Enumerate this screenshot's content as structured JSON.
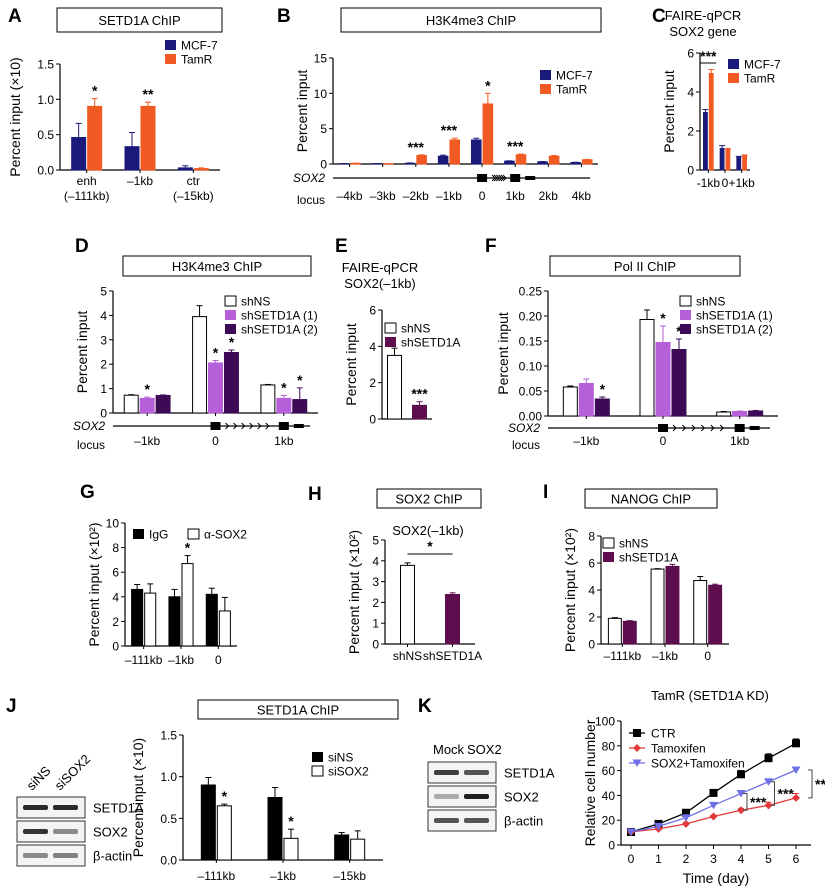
{
  "colors": {
    "mcf7": "#1a1a7a",
    "tamr": "#f25a23",
    "shns": "#ffffff",
    "sh1": "#b560d8",
    "sh2": "#3d0a55",
    "shsetd1a": "#5e0d4e",
    "black": "#000000",
    "ctr": "#000000",
    "tamoxifen": "#e23a3a",
    "sox2tam": "#6f6fe8"
  },
  "chart_data": [
    {
      "id": "A",
      "type": "bar",
      "panel_label": "A",
      "boxed_title": "SETD1A ChIP",
      "ylabel": "Percent input (×10)",
      "ylim": [
        0,
        1.5
      ],
      "yticks": [
        "0.0",
        "0.5",
        "1.0",
        "1.5"
      ],
      "categories": [
        "enh\n(–111kb)",
        "–1kb",
        "ctr\n(–15kb)"
      ],
      "series": [
        {
          "name": "MCF-7",
          "color_key": "mcf7",
          "values": [
            0.46,
            0.33,
            0.03
          ],
          "errors": [
            0.2,
            0.2,
            0.03
          ]
        },
        {
          "name": "TamR",
          "color_key": "tamr",
          "values": [
            0.9,
            0.9,
            0.02
          ],
          "errors": [
            0.11,
            0.06,
            0.01
          ]
        }
      ],
      "annotations": [
        {
          "category": 0,
          "series": 1,
          "text": "*"
        },
        {
          "category": 1,
          "series": 1,
          "text": "**"
        }
      ],
      "legend": "top-right"
    },
    {
      "id": "B",
      "type": "bar",
      "panel_label": "B",
      "boxed_title": "H3K4me3 ChIP",
      "ylabel": "Percent input",
      "ylim": [
        0,
        15
      ],
      "yticks": [
        "0",
        "5",
        "10",
        "15"
      ],
      "categories": [
        "–4kb",
        "–3kb",
        "–2kb",
        "–1kb",
        "0",
        "1kb",
        "2kb",
        "4kb"
      ],
      "series": [
        {
          "name": "MCF-7",
          "color_key": "mcf7",
          "values": [
            0.05,
            0.05,
            0.1,
            1.1,
            3.4,
            0.4,
            0.3,
            0.2
          ],
          "errors": [
            0.02,
            0.02,
            0.05,
            0.15,
            0.25,
            0.05,
            0.05,
            0.05
          ]
        },
        {
          "name": "TamR",
          "color_key": "tamr",
          "values": [
            0.1,
            0.05,
            1.2,
            3.4,
            8.5,
            1.3,
            1.1,
            0.6
          ],
          "errors": [
            0.02,
            0.02,
            0.1,
            0.25,
            1.5,
            0.1,
            0.1,
            0.05
          ]
        }
      ],
      "annotations": [
        {
          "category": 2,
          "text": "***"
        },
        {
          "category": 3,
          "text": "***"
        },
        {
          "category": 4,
          "series": 1,
          "text": "*"
        },
        {
          "category": 5,
          "text": "***"
        }
      ],
      "locus_label": [
        "SOX2",
        "locus"
      ],
      "legend": "top-right"
    },
    {
      "id": "C",
      "type": "bar",
      "panel_label": "C",
      "title_lines": [
        "FAIRE-qPCR",
        "SOX2 gene"
      ],
      "ylabel": "Percent input",
      "ylim": [
        0,
        6
      ],
      "yticks": [
        "0",
        "2",
        "4",
        "6"
      ],
      "categories": [
        "-1kb",
        "0",
        "+1kb"
      ],
      "series": [
        {
          "name": "MCF-7",
          "color_key": "mcf7",
          "values": [
            2.95,
            1.1,
            0.65
          ],
          "errors": [
            0.15,
            0.15,
            0.05
          ]
        },
        {
          "name": "TamR",
          "color_key": "tamr",
          "values": [
            4.95,
            1.05,
            0.72
          ],
          "errors": [
            0.2,
            0.05,
            0.05
          ]
        }
      ],
      "annotations": [
        {
          "category": 0,
          "text": "***",
          "bracket": true
        }
      ],
      "legend": "top-right"
    },
    {
      "id": "D",
      "type": "bar",
      "panel_label": "D",
      "boxed_title": "H3K4me3 ChIP",
      "ylabel": "Percent input",
      "ylim": [
        0,
        5
      ],
      "yticks": [
        "0",
        "1",
        "2",
        "3",
        "4",
        "5"
      ],
      "categories": [
        "–1kb",
        "0",
        "1kb"
      ],
      "series": [
        {
          "name": "shNS",
          "color_key": "shns",
          "values": [
            0.73,
            3.95,
            1.15
          ],
          "errors": [
            0.02,
            0.45,
            0.02
          ]
        },
        {
          "name": "shSETD1A (1)",
          "color_key": "sh1",
          "values": [
            0.6,
            2.05,
            0.6
          ],
          "errors": [
            0.05,
            0.1,
            0.12
          ]
        },
        {
          "name": "shSETD1A (2)",
          "color_key": "sh2",
          "values": [
            0.72,
            2.48,
            0.55
          ],
          "errors": [
            0.02,
            0.1,
            0.48
          ]
        }
      ],
      "annotations": [
        {
          "category": 0,
          "series": 1,
          "text": "*"
        },
        {
          "category": 1,
          "series": 1,
          "text": "*"
        },
        {
          "category": 1,
          "series": 2,
          "text": "*"
        },
        {
          "category": 2,
          "series": 1,
          "text": "*"
        },
        {
          "category": 2,
          "series": 2,
          "text": "*"
        }
      ],
      "locus_label": [
        "SOX2",
        "locus"
      ],
      "legend": "top-right"
    },
    {
      "id": "E",
      "type": "bar",
      "panel_label": "E",
      "title_lines": [
        "FAIRE-qPCR",
        "SOX2(–1kb)"
      ],
      "ylabel": "Percent input",
      "ylim": [
        0,
        6
      ],
      "yticks": [
        "0",
        "2",
        "4",
        "6"
      ],
      "categories": [
        "shNS",
        "shSETD1A"
      ],
      "show_xticklabels": false,
      "series": [
        {
          "name": "shNS",
          "color_key": "shns",
          "values": [
            3.5
          ],
          "errors": [
            0.4
          ]
        },
        {
          "name": "shSETD1A",
          "color_key": "shsetd1a",
          "values": [
            0.75
          ],
          "errors": [
            0.2
          ]
        }
      ],
      "single_bars": true,
      "annotations": [
        {
          "category": 1,
          "text": "***"
        }
      ],
      "legend": "top-right"
    },
    {
      "id": "F",
      "type": "bar",
      "panel_label": "F",
      "boxed_title": "Pol II ChIP",
      "ylabel": "Percent input",
      "ylim": [
        0,
        0.25
      ],
      "yticks": [
        "0.00",
        "0.05",
        "0.10",
        "0.15",
        "0.20",
        "0.25"
      ],
      "categories": [
        "–1kb",
        "0",
        "1kb"
      ],
      "series": [
        {
          "name": "shNS",
          "color_key": "shns",
          "values": [
            0.058,
            0.193,
            0.008
          ],
          "errors": [
            0.002,
            0.019,
            0.001
          ]
        },
        {
          "name": "shSETD1A (1)",
          "color_key": "sh1",
          "values": [
            0.065,
            0.147,
            0.009
          ],
          "errors": [
            0.009,
            0.033,
            0.001
          ]
        },
        {
          "name": "shSETD1A (2)",
          "color_key": "sh2",
          "values": [
            0.034,
            0.133,
            0.01
          ],
          "errors": [
            0.004,
            0.021,
            0.001
          ]
        }
      ],
      "annotations": [
        {
          "category": 0,
          "series": 2,
          "text": "*"
        },
        {
          "category": 1,
          "series": 1,
          "text": "*"
        },
        {
          "category": 1,
          "series": 2,
          "text": "*"
        }
      ],
      "locus_label": [
        "SOX2",
        "locus"
      ],
      "legend": "top-right"
    },
    {
      "id": "G",
      "type": "bar",
      "panel_label": "G",
      "ylabel": "Percent input (×10²)",
      "ylim": [
        0,
        10
      ],
      "yticks": [
        "0",
        "2",
        "4",
        "6",
        "8",
        "10"
      ],
      "categories": [
        "–111kb",
        "–1kb",
        "0"
      ],
      "series": [
        {
          "name": "IgG",
          "color_key": "black",
          "values": [
            4.6,
            4.0,
            4.2
          ],
          "errors": [
            0.4,
            0.6,
            0.5
          ]
        },
        {
          "name": "α-SOX2",
          "color_key": "shns",
          "values": [
            4.3,
            6.7,
            2.85
          ],
          "errors": [
            0.75,
            0.65,
            1.1
          ]
        }
      ],
      "annotations": [
        {
          "category": 1,
          "series": 1,
          "text": "*"
        }
      ],
      "legend": "top-horizontal"
    },
    {
      "id": "H",
      "type": "bar",
      "panel_label": "H",
      "boxed_title": "SOX2  ChIP",
      "subtitle": "SOX2(–1kb)",
      "ylabel": "Percent input (×10²)",
      "ylim": [
        0,
        5
      ],
      "yticks": [
        "0",
        "1",
        "2",
        "3",
        "4",
        "5"
      ],
      "categories": [
        "shNS",
        "shSETD1A"
      ],
      "series": [
        {
          "name": "shNS",
          "color_key": "shns",
          "values": [
            3.78
          ],
          "errors": [
            0.12
          ]
        },
        {
          "name": "shSETD1A",
          "color_key": "shsetd1a",
          "values": [
            2.38
          ],
          "errors": [
            0.08
          ]
        }
      ],
      "single_bars": true,
      "annotations": [
        {
          "text": "*",
          "bracket_between": [
            0,
            1
          ]
        }
      ]
    },
    {
      "id": "I",
      "type": "bar",
      "panel_label": "I",
      "boxed_title": "NANOG  ChIP",
      "ylabel": "Percent input (×10²)",
      "ylim": [
        0,
        8
      ],
      "yticks": [
        "0",
        "2",
        "4",
        "6",
        "8"
      ],
      "categories": [
        "–111kb",
        "–1kb",
        "0"
      ],
      "series": [
        {
          "name": "shNS",
          "color_key": "shns",
          "values": [
            1.9,
            5.55,
            4.7
          ],
          "errors": [
            0.05,
            0.03,
            0.3
          ]
        },
        {
          "name": "shSETD1A",
          "color_key": "shsetd1a",
          "values": [
            1.68,
            5.75,
            4.35
          ],
          "errors": [
            0.05,
            0.15,
            0.08
          ]
        }
      ],
      "legend": "top-left"
    },
    {
      "id": "J",
      "type": "bar",
      "panel_label": "J",
      "boxed_title": "SETD1A  ChIP",
      "ylabel": "Percent input (×10)",
      "ylim": [
        0,
        1.5
      ],
      "yticks": [
        "0.0",
        "0.5",
        "1.0",
        "1.5"
      ],
      "categories": [
        "–111kb",
        "–1kb",
        "–15kb"
      ],
      "series": [
        {
          "name": "siNS",
          "color_key": "black",
          "values": [
            0.9,
            0.75,
            0.3
          ],
          "errors": [
            0.09,
            0.12,
            0.03
          ]
        },
        {
          "name": "siSOX2",
          "color_key": "shns",
          "values": [
            0.65,
            0.26,
            0.25
          ],
          "errors": [
            0.02,
            0.11,
            0.1
          ]
        }
      ],
      "annotations": [
        {
          "category": 0,
          "series": 1,
          "text": "*"
        },
        {
          "category": 1,
          "series": 1,
          "text": "*"
        }
      ],
      "legend": "top-right"
    },
    {
      "id": "K",
      "type": "line",
      "panel_label": "K",
      "title": "TamR (SETD1A KD)",
      "xlabel": "Time (day)",
      "ylabel": "Relative cell number",
      "x": [
        0,
        1,
        2,
        3,
        4,
        5,
        6
      ],
      "xlim": [
        0,
        6
      ],
      "ylim": [
        0,
        100
      ],
      "yticks": [
        "0",
        "20",
        "40",
        "60",
        "80",
        "100"
      ],
      "xticks": [
        "0",
        "1",
        "2",
        "3",
        "4",
        "5",
        "6"
      ],
      "series": [
        {
          "name": "CTR",
          "color_key": "ctr",
          "marker": "square",
          "values": [
            10.5,
            17,
            26,
            42,
            57,
            70,
            82
          ],
          "errors": [
            1,
            1.5,
            2,
            2.5,
            3,
            3.5,
            3.5
          ]
        },
        {
          "name": "Tamoxifen",
          "color_key": "tamoxifen",
          "marker": "diamond",
          "values": [
            10.5,
            13,
            17,
            23,
            28,
            32,
            38
          ],
          "errors": [
            1,
            1,
            1,
            1,
            1.5,
            2.5,
            3.5
          ]
        },
        {
          "name": "SOX2+Tamoxifen",
          "color_key": "sox2tam",
          "marker": "triangle-down",
          "values": [
            10.5,
            15,
            22,
            32,
            41.5,
            51,
            60.5
          ],
          "errors": [
            1,
            1,
            1,
            1,
            1,
            1,
            1
          ]
        }
      ],
      "annotations": [
        {
          "x": 4,
          "text": "***"
        },
        {
          "x": 5,
          "text": "***"
        },
        {
          "x": 6,
          "text": "***",
          "outer": true
        }
      ],
      "legend": "top-left"
    }
  ],
  "blots": {
    "J": {
      "lanes": [
        "siNS",
        "siSOX2"
      ],
      "rows": [
        {
          "label": "SETD1A",
          "intensity": [
            0.9,
            0.9
          ]
        },
        {
          "label": "SOX2",
          "intensity": [
            0.85,
            0.45
          ]
        },
        {
          "label": "β-actin",
          "intensity": [
            0.45,
            0.5
          ]
        }
      ]
    },
    "K": {
      "lanes": [
        "Mock",
        "SOX2"
      ],
      "rows": [
        {
          "label": "SETD1A",
          "intensity": [
            0.8,
            0.7
          ]
        },
        {
          "label": "SOX2",
          "intensity": [
            0.3,
            0.95
          ]
        },
        {
          "label": "β-actin",
          "intensity": [
            0.7,
            0.7
          ]
        }
      ]
    }
  }
}
